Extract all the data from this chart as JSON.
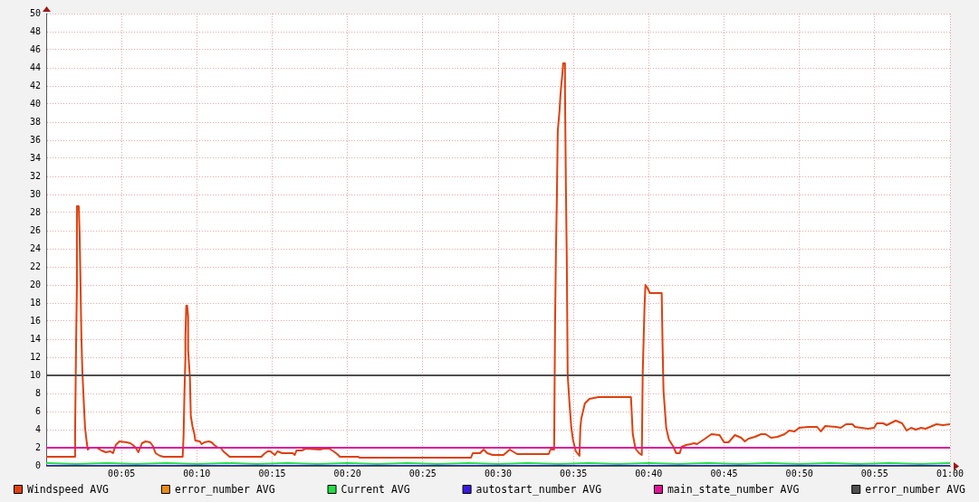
{
  "chart_data": {
    "type": "line",
    "xlim": [
      0,
      1
    ],
    "xticks": [
      {
        "value": 0.083333,
        "label": "00:05"
      },
      {
        "value": 0.166667,
        "label": "00:10"
      },
      {
        "value": 0.25,
        "label": "00:15"
      },
      {
        "value": 0.333333,
        "label": "00:20"
      },
      {
        "value": 0.416667,
        "label": "00:25"
      },
      {
        "value": 0.5,
        "label": "00:30"
      },
      {
        "value": 0.583333,
        "label": "00:35"
      },
      {
        "value": 0.666667,
        "label": "00:40"
      },
      {
        "value": 0.75,
        "label": "00:45"
      },
      {
        "value": 0.833333,
        "label": "00:50"
      },
      {
        "value": 0.916667,
        "label": "00:55"
      },
      {
        "value": 1,
        "label": "01:00"
      }
    ],
    "ylim": [
      0,
      50
    ],
    "yticks": [
      0,
      2,
      4,
      6,
      8,
      10,
      12,
      14,
      16,
      18,
      20,
      22,
      24,
      26,
      28,
      30,
      32,
      34,
      36,
      38,
      40,
      42,
      44,
      46,
      48,
      50
    ],
    "grid": true,
    "legend": "bottom",
    "marker": "none",
    "series": [
      {
        "name": "Windspeed AVG",
        "color": "#e0400e",
        "x": [
          0,
          0.032,
          0.032,
          0.033,
          0.034,
          0.034,
          0.036,
          0.037,
          0.038,
          0.039,
          0.04,
          0.042,
          0.043,
          0.045,
          0.046,
          0.048,
          0.056,
          0.061,
          0.066,
          0.071,
          0.074,
          0.077,
          0.081,
          0.089,
          0.093,
          0.096,
          0.099,
          0.102,
          0.106,
          0.11,
          0.115,
          0.118,
          0.121,
          0.126,
          0.13,
          0.151,
          0.152,
          0.153,
          0.154,
          0.154,
          0.155,
          0.156,
          0.157,
          0.157,
          0.159,
          0.16,
          0.162,
          0.164,
          0.165,
          0.17,
          0.172,
          0.175,
          0.18,
          0.183,
          0.186,
          0.19,
          0.193,
          0.196,
          0.203,
          0.238,
          0.241,
          0.245,
          0.248,
          0.253,
          0.256,
          0.261,
          0.273,
          0.275,
          0.277,
          0.283,
          0.287,
          0.303,
          0.307,
          0.313,
          0.318,
          0.322,
          0.325,
          0.345,
          0.347,
          0.47,
          0.472,
          0.48,
          0.484,
          0.488,
          0.494,
          0.506,
          0.513,
          0.516,
          0.521,
          0.556,
          0.558,
          0.562,
          0.563,
          0.564,
          0.565,
          0.566,
          0.568,
          0.569,
          0.57,
          0.571,
          0.572,
          0.574,
          0.574,
          0.575,
          0.576,
          0.577,
          0.579,
          0.581,
          0.583,
          0.586,
          0.59,
          0.591,
          0.592,
          0.596,
          0.601,
          0.611,
          0.647,
          0.649,
          0.652,
          0.656,
          0.659,
          0.66,
          0.662,
          0.663,
          0.665,
          0.668,
          0.681,
          0.682,
          0.683,
          0.686,
          0.689,
          0.694,
          0.697,
          0.701,
          0.703,
          0.708,
          0.713,
          0.717,
          0.72,
          0.729,
          0.736,
          0.745,
          0.75,
          0.755,
          0.762,
          0.769,
          0.773,
          0.777,
          0.784,
          0.791,
          0.796,
          0.802,
          0.809,
          0.817,
          0.822,
          0.828,
          0.833,
          0.843,
          0.853,
          0.857,
          0.862,
          0.874,
          0.879,
          0.885,
          0.892,
          0.895,
          0.902,
          0.909,
          0.916,
          0.919,
          0.926,
          0.93,
          0.94,
          0.947,
          0.952,
          0.957,
          0.962,
          0.968,
          0.973,
          0.985,
          0.992,
          1
        ],
        "values": [
          1.0,
          1.0,
          3.8,
          12.8,
          20.0,
          28.7,
          28.7,
          25.7,
          20.0,
          14.0,
          10.5,
          6.2,
          4.2,
          2.5,
          1.8,
          2.0,
          2.0,
          1.7,
          1.5,
          1.6,
          1.4,
          2.3,
          2.7,
          2.6,
          2.5,
          2.3,
          2.0,
          1.5,
          2.5,
          2.7,
          2.6,
          2.2,
          1.4,
          1.1,
          1.0,
          1.0,
          3.3,
          8.2,
          11.8,
          14.2,
          17.7,
          17.7,
          16.5,
          12.8,
          9.8,
          5.5,
          4.3,
          3.5,
          2.8,
          2.7,
          2.4,
          2.6,
          2.7,
          2.6,
          2.3,
          2.0,
          2.0,
          1.6,
          1.0,
          1.0,
          1.3,
          1.6,
          1.6,
          1.2,
          1.6,
          1.4,
          1.4,
          1.2,
          1.7,
          1.7,
          1.9,
          1.8,
          1.9,
          1.9,
          1.6,
          1.3,
          1.0,
          1.0,
          0.9,
          0.9,
          1.4,
          1.4,
          1.8,
          1.4,
          1.2,
          1.2,
          1.8,
          1.6,
          1.3,
          1.3,
          1.8,
          1.8,
          15.6,
          23.7,
          29.5,
          37.0,
          39.3,
          41.0,
          42.2,
          43.2,
          44.5,
          44.5,
          41.5,
          31.0,
          22.7,
          10.0,
          6.9,
          4.2,
          2.8,
          1.6,
          1.1,
          4.2,
          5.2,
          6.9,
          7.4,
          7.6,
          7.6,
          3.5,
          1.9,
          1.4,
          1.2,
          10.2,
          17.6,
          20.0,
          19.7,
          19.1,
          19.1,
          13.2,
          8.3,
          4.2,
          2.9,
          2.1,
          1.4,
          1.4,
          2.1,
          2.3,
          2.4,
          2.5,
          2.4,
          3.0,
          3.5,
          3.4,
          2.6,
          2.6,
          3.4,
          3.1,
          2.7,
          3.0,
          3.2,
          3.5,
          3.5,
          3.1,
          3.2,
          3.5,
          3.9,
          3.8,
          4.2,
          4.3,
          4.3,
          3.8,
          4.4,
          4.3,
          4.2,
          4.6,
          4.6,
          4.3,
          4.2,
          4.1,
          4.2,
          4.7,
          4.7,
          4.5,
          5.0,
          4.7,
          3.9,
          4.2,
          4.0,
          4.2,
          4.1,
          4.6,
          4.5,
          4.6
        ]
      },
      {
        "name": "error_number AVG",
        "color": "#ea8a1a"
      },
      {
        "name": "Current AVG",
        "color": "#22dd44",
        "x": [
          0,
          0.033,
          0.067,
          0.1,
          0.133,
          0.167,
          0.2,
          0.233,
          0.267,
          0.3,
          0.333,
          0.367,
          0.4,
          0.433,
          0.467,
          0.5,
          0.533,
          0.567,
          0.6,
          0.633,
          0.667,
          0.7,
          0.733,
          0.767,
          0.8,
          0.833,
          0.867,
          0.9,
          0.933,
          0.967,
          1
        ],
        "values": [
          0.3,
          0.2,
          0.3,
          0.2,
          0.3,
          0.2,
          0.3,
          0.2,
          0.3,
          0.2,
          0.3,
          0.2,
          0.3,
          0.2,
          0.3,
          0.2,
          0.3,
          0.2,
          0.3,
          0.2,
          0.3,
          0.2,
          0.3,
          0.2,
          0.3,
          0.2,
          0.3,
          0.2,
          0.3,
          0.2,
          0.3
        ]
      },
      {
        "name": "autostart_number AVG",
        "color": "#3a1ae0",
        "x": [
          0,
          1
        ],
        "values": [
          0,
          0
        ]
      },
      {
        "name": "main_state_number AVG",
        "color": "#e0149a",
        "x": [
          0,
          1
        ],
        "values": [
          2,
          2
        ]
      },
      {
        "name": "error_number AVG",
        "color": "#505050",
        "x": [
          0,
          1
        ],
        "values": [
          10,
          10
        ]
      }
    ]
  }
}
